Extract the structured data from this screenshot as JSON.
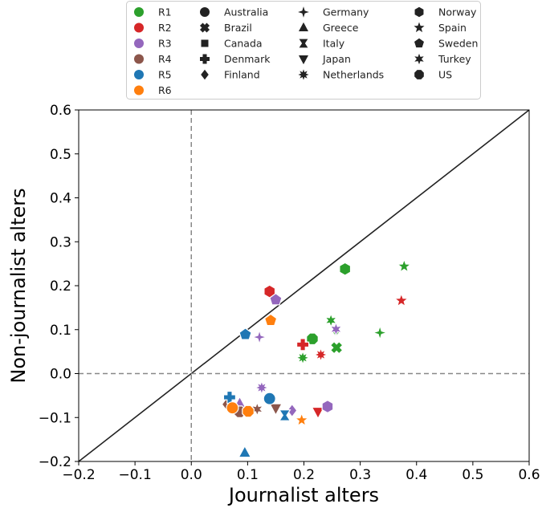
{
  "chart_data": {
    "type": "scatter",
    "xlabel": "Journalist alters",
    "ylabel": "Non-journalist alters",
    "xlim": [
      -0.2,
      0.6
    ],
    "ylim": [
      -0.2,
      0.6
    ],
    "xticks": [
      "−0.2",
      "−0.1",
      "0.0",
      "0.1",
      "0.2",
      "0.3",
      "0.4",
      "0.5",
      "0.6"
    ],
    "yticks": [
      "−0.2",
      "−0.1",
      "0.0",
      "0.1",
      "0.2",
      "0.3",
      "0.4",
      "0.5",
      "0.6"
    ],
    "grid": false,
    "reference_lines": {
      "diagonal": "y = x",
      "vertical_dashed_x": 0,
      "horizontal_dashed_y": 0
    },
    "legend_position": "top-center",
    "rounds": [
      {
        "name": "R1",
        "color": "#2ca02c"
      },
      {
        "name": "R2",
        "color": "#d62728"
      },
      {
        "name": "R3",
        "color": "#9467bd"
      },
      {
        "name": "R4",
        "color": "#8c564b"
      },
      {
        "name": "R5",
        "color": "#1f77b4"
      },
      {
        "name": "R6",
        "color": "#ff7f0e"
      }
    ],
    "countries": [
      {
        "name": "Australia",
        "marker": "circle"
      },
      {
        "name": "Brazil",
        "marker": "x"
      },
      {
        "name": "Canada",
        "marker": "square"
      },
      {
        "name": "Denmark",
        "marker": "plus"
      },
      {
        "name": "Finland",
        "marker": "diamond"
      },
      {
        "name": "Germany",
        "marker": "star4"
      },
      {
        "name": "Greece",
        "marker": "triangle-up"
      },
      {
        "name": "Italy",
        "marker": "bowtie"
      },
      {
        "name": "Japan",
        "marker": "triangle-down"
      },
      {
        "name": "Netherlands",
        "marker": "star8"
      },
      {
        "name": "Norway",
        "marker": "hexagon"
      },
      {
        "name": "Spain",
        "marker": "star5"
      },
      {
        "name": "Sweden",
        "marker": "pentagon"
      },
      {
        "name": "Turkey",
        "marker": "star6"
      },
      {
        "name": "US",
        "marker": "octagon"
      }
    ],
    "points": [
      {
        "round": "R1",
        "country": "Norway",
        "x": 0.273,
        "y": 0.238
      },
      {
        "round": "R1",
        "country": "Spain",
        "x": 0.378,
        "y": 0.244
      },
      {
        "round": "R1",
        "country": "Germany",
        "x": 0.335,
        "y": 0.093
      },
      {
        "round": "R1",
        "country": "US",
        "x": 0.215,
        "y": 0.079
      },
      {
        "round": "R1",
        "country": "Brazil",
        "x": 0.258,
        "y": 0.059
      },
      {
        "round": "R1",
        "country": "Turkey",
        "x": 0.248,
        "y": 0.121
      },
      {
        "round": "R1",
        "country": "Netherlands",
        "x": 0.198,
        "y": 0.036
      },
      {
        "round": "R1",
        "country": "Finland",
        "x": 0.257,
        "y": 0.098
      },
      {
        "round": "R2",
        "country": "Norway",
        "x": 0.139,
        "y": 0.187
      },
      {
        "round": "R2",
        "country": "Spain",
        "x": 0.373,
        "y": 0.166
      },
      {
        "round": "R2",
        "country": "Denmark",
        "x": 0.198,
        "y": 0.066
      },
      {
        "round": "R2",
        "country": "Netherlands",
        "x": 0.23,
        "y": 0.043
      },
      {
        "round": "R2",
        "country": "Japan",
        "x": 0.225,
        "y": -0.087
      },
      {
        "round": "R3",
        "country": "Sweden",
        "x": 0.15,
        "y": 0.168
      },
      {
        "round": "R3",
        "country": "Germany",
        "x": 0.121,
        "y": 0.083
      },
      {
        "round": "R3",
        "country": "Turkey",
        "x": 0.257,
        "y": 0.101
      },
      {
        "round": "R3",
        "country": "Netherlands",
        "x": 0.125,
        "y": -0.032
      },
      {
        "round": "R3",
        "country": "Finland",
        "x": 0.179,
        "y": -0.084
      },
      {
        "round": "R3",
        "country": "Norway",
        "x": 0.242,
        "y": -0.075
      },
      {
        "round": "R3",
        "country": "Greece",
        "x": 0.086,
        "y": -0.068
      },
      {
        "round": "R4",
        "country": "Finland",
        "x": 0.063,
        "y": -0.07
      },
      {
        "round": "R4",
        "country": "Turkey",
        "x": 0.117,
        "y": -0.081
      },
      {
        "round": "R4",
        "country": "Japan",
        "x": 0.15,
        "y": -0.079
      },
      {
        "round": "R4",
        "country": "US",
        "x": 0.086,
        "y": -0.087
      },
      {
        "round": "R5",
        "country": "Sweden",
        "x": 0.096,
        "y": 0.089
      },
      {
        "round": "R5",
        "country": "Australia",
        "x": 0.139,
        "y": -0.057
      },
      {
        "round": "R5",
        "country": "Denmark",
        "x": 0.068,
        "y": -0.054
      },
      {
        "round": "R5",
        "country": "Italy",
        "x": 0.166,
        "y": -0.095
      },
      {
        "round": "R5",
        "country": "Greece",
        "x": 0.095,
        "y": -0.18
      },
      {
        "round": "R6",
        "country": "Sweden",
        "x": 0.141,
        "y": 0.121
      },
      {
        "round": "R6",
        "country": "Australia",
        "x": 0.073,
        "y": -0.078
      },
      {
        "round": "R6",
        "country": "US",
        "x": 0.101,
        "y": -0.086
      },
      {
        "round": "R6",
        "country": "Spain",
        "x": 0.196,
        "y": -0.106
      }
    ]
  }
}
